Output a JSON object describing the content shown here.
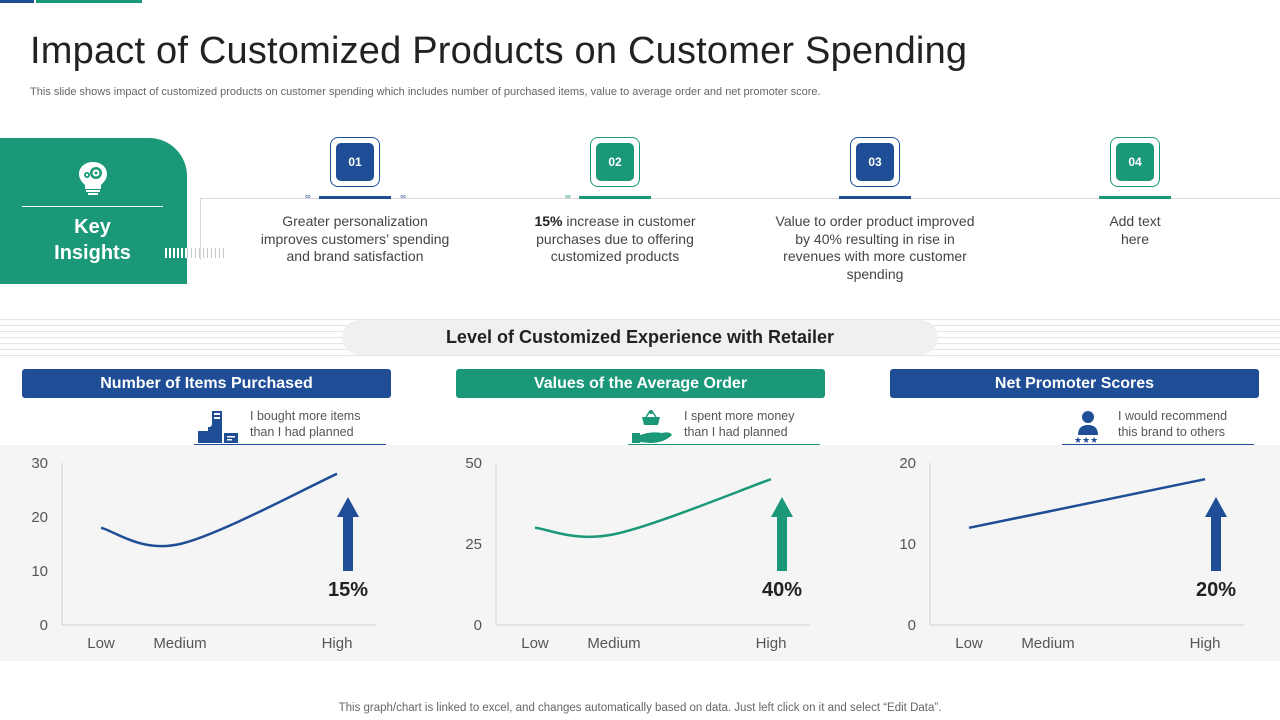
{
  "title": "Impact of Customized Products on Customer Spending",
  "subtitle": "This slide shows impact of customized products on customer spending which includes number of purchased items, value to average order and net promoter score.",
  "key_insights": {
    "line1": "Key",
    "line2": "Insights"
  },
  "colors": {
    "teal": "#1a9878",
    "blue": "#1f4e96"
  },
  "steps": [
    {
      "number": "01",
      "lead": "",
      "text": "Greater personalization improves customers’ spending and brand satisfaction"
    },
    {
      "number": "02",
      "lead": "15%",
      "text": " increase in customer purchases due to offering customized products"
    },
    {
      "number": "03",
      "lead": "",
      "text": "Value to order product improved by 40% resulting in rise in revenues with more customer spending"
    },
    {
      "number": "04",
      "lead": "",
      "text": "Add text here"
    }
  ],
  "section_title": "Level of Customized Experience with Retailer",
  "panels": [
    {
      "header": "Number of Items Purchased",
      "note": "I bought more items than I had planned",
      "icon": "shopping-bags-icon"
    },
    {
      "header": "Values of the Average Order",
      "note": "I spent more money than I had planned",
      "icon": "hand-basket-icon"
    },
    {
      "header": "Net Promoter Scores",
      "note": "I would recommend this brand to others",
      "icon": "person-stars-icon"
    }
  ],
  "chart_data": [
    {
      "type": "line",
      "title": "Number of Items Purchased",
      "categories": [
        "Low",
        "Medium",
        "High"
      ],
      "x": [
        0,
        1,
        2
      ],
      "values": [
        18,
        15,
        28
      ],
      "ylim": [
        0,
        30
      ],
      "yticks": [
        "0",
        "10",
        "20",
        "30"
      ],
      "color": "#1f4e96",
      "callout": "15%"
    },
    {
      "type": "line",
      "title": "Values of the Average Order",
      "categories": [
        "Low",
        "Medium",
        "High"
      ],
      "x": [
        0,
        1,
        2
      ],
      "values": [
        30,
        28,
        45
      ],
      "ylim": [
        0,
        50
      ],
      "yticks": [
        "0",
        "25",
        "50"
      ],
      "color": "#1a9878",
      "callout": "40%"
    },
    {
      "type": "line",
      "title": "Net Promoter Scores",
      "categories": [
        "Low",
        "Medium",
        "High"
      ],
      "x": [
        0,
        1,
        2
      ],
      "values": [
        12,
        14,
        18
      ],
      "ylim": [
        0,
        20
      ],
      "yticks": [
        "0",
        "10",
        "20"
      ],
      "color": "#1f4e96",
      "callout": "20%"
    }
  ],
  "footer": "This graph/chart is linked to excel,  and changes automatically based on data. Just left click on it and select “Edit Data”."
}
